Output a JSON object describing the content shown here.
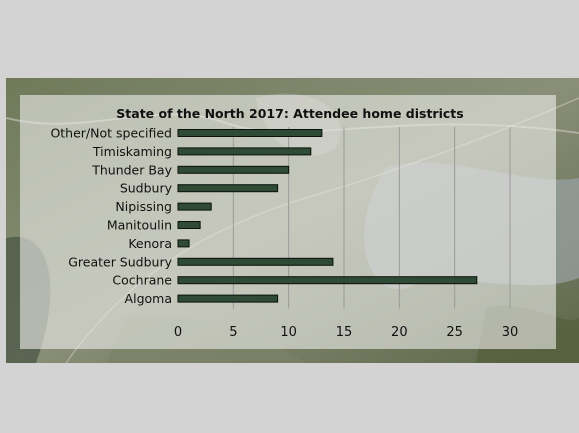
{
  "colors": {
    "page_background": "#d3d3d3",
    "bar_fill": "#2f4a35",
    "bar_stroke": "#0b120c",
    "gridline": "#9a9a9a"
  },
  "chart_data": {
    "type": "bar",
    "orientation": "horizontal",
    "title": "State of the North 2017: Attendee home districts",
    "categories": [
      "Other/Not specified",
      "Timiskaming",
      "Thunder Bay",
      "Sudbury",
      "Nipissing",
      "Manitoulin",
      "Kenora",
      "Greater Sudbury",
      "Cochrane",
      "Algoma"
    ],
    "values": [
      13,
      12,
      10,
      9,
      3,
      2,
      1,
      14,
      27,
      9
    ],
    "xlim": [
      0,
      30
    ],
    "xticks": [
      "0",
      "5",
      "10",
      "15",
      "20",
      "25",
      "30"
    ],
    "xlabel": "",
    "ylabel": "",
    "grid": "vertical",
    "legend": "none"
  }
}
